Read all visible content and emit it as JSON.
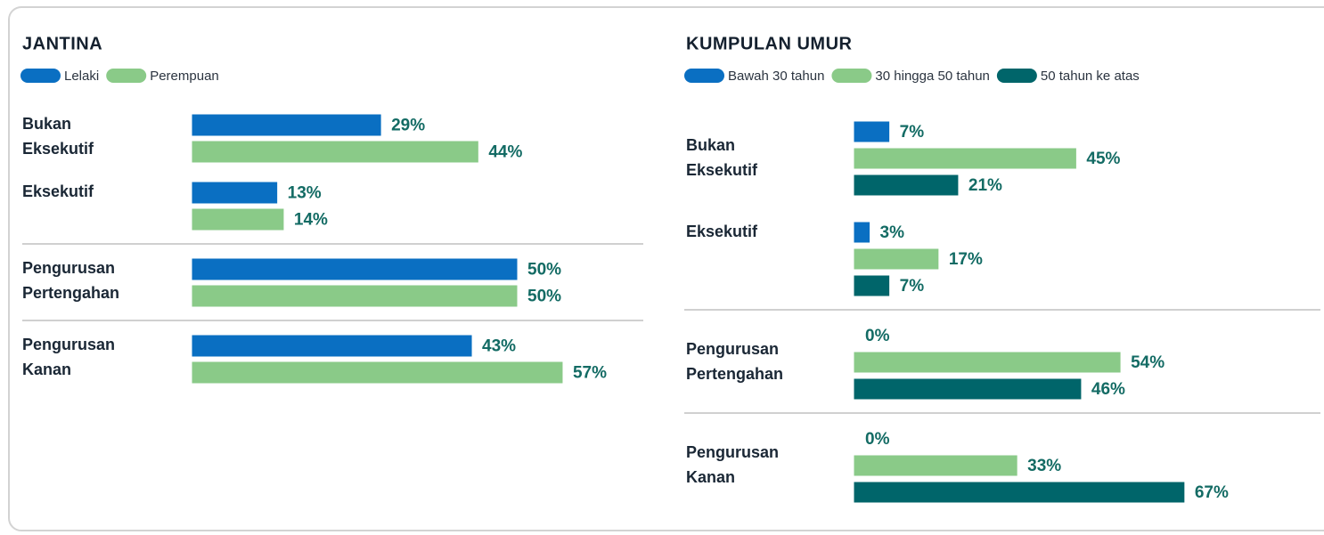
{
  "chart_data": [
    {
      "type": "bar",
      "title": "JANTINA",
      "categories": [
        "Bukan Eksekutif",
        "Eksekutif",
        "Pengurusan Pertengahan",
        "Pengurusan Kanan"
      ],
      "series": [
        {
          "name": "Lelaki",
          "color": "#0a6fc2",
          "values": [
            29,
            13,
            50,
            43
          ],
          "value_labels": [
            "29%",
            "13%",
            "50%",
            "43%"
          ]
        },
        {
          "name": "Perempuan",
          "color": "#8aca88",
          "values": [
            44,
            14,
            50,
            57
          ],
          "value_labels": [
            "44%",
            "14%",
            "50%",
            "57%"
          ]
        }
      ]
    },
    {
      "type": "bar",
      "title": "KUMPULAN UMUR",
      "categories": [
        "Bukan Eksekutif",
        "Eksekutif",
        "Pengurusan Pertengahan",
        "Pengurusan Kanan"
      ],
      "series": [
        {
          "name": "Bawah 30 tahun",
          "color": "#0a6fc2",
          "values": [
            7,
            3,
            0,
            0
          ],
          "value_labels": [
            "7%",
            "3%",
            "0%",
            "0%"
          ]
        },
        {
          "name": "30 hingga 50 tahun",
          "color": "#8aca88",
          "values": [
            45,
            17,
            54,
            33
          ],
          "value_labels": [
            "45%",
            "17%",
            "54%",
            "33%"
          ]
        },
        {
          "name": "50 tahun ke atas",
          "color": "#00656a",
          "values": [
            21,
            7,
            46,
            67
          ],
          "value_labels": [
            "21%",
            "7%",
            "46%",
            "67%"
          ]
        }
      ]
    }
  ]
}
